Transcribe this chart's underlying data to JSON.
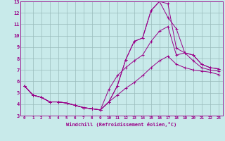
{
  "xlabel": "Windchill (Refroidissement éolien,°C)",
  "xlim": [
    -0.5,
    23.5
  ],
  "ylim": [
    3,
    13
  ],
  "xticks": [
    0,
    1,
    2,
    3,
    4,
    5,
    6,
    7,
    8,
    9,
    10,
    11,
    12,
    13,
    14,
    15,
    16,
    17,
    18,
    19,
    20,
    21,
    22,
    23
  ],
  "yticks": [
    3,
    4,
    5,
    6,
    7,
    8,
    9,
    10,
    11,
    12,
    13
  ],
  "bg_color": "#c8eaea",
  "line_color": "#990088",
  "grid_color": "#99bbbb",
  "lines": [
    {
      "x": [
        0,
        1,
        2,
        3,
        4,
        5,
        6,
        7,
        8,
        9,
        10,
        11,
        12,
        13,
        14,
        15,
        16,
        17,
        18,
        19,
        20,
        21,
        22,
        23
      ],
      "y": [
        5.6,
        4.8,
        4.6,
        4.2,
        4.2,
        4.1,
        3.9,
        3.7,
        3.6,
        3.5,
        4.2,
        5.6,
        7.9,
        9.5,
        9.8,
        12.2,
        13.0,
        12.8,
        8.9,
        8.5,
        8.3,
        7.5,
        7.2,
        7.1
      ]
    },
    {
      "x": [
        0,
        1,
        2,
        3,
        4,
        5,
        6,
        7,
        8,
        9,
        10,
        11,
        12,
        13,
        14,
        15,
        16,
        17,
        18,
        19,
        20,
        21,
        22,
        23
      ],
      "y": [
        5.6,
        4.8,
        4.6,
        4.2,
        4.2,
        4.1,
        3.9,
        3.7,
        3.6,
        3.5,
        4.2,
        5.6,
        7.9,
        9.5,
        9.8,
        12.2,
        13.0,
        11.6,
        10.6,
        8.5,
        8.3,
        7.5,
        7.2,
        7.1
      ]
    },
    {
      "x": [
        0,
        1,
        2,
        3,
        4,
        5,
        6,
        7,
        8,
        9,
        10,
        11,
        12,
        13,
        14,
        15,
        16,
        17,
        18,
        19,
        20,
        21,
        22,
        23
      ],
      "y": [
        5.6,
        4.8,
        4.6,
        4.2,
        4.2,
        4.1,
        3.9,
        3.7,
        3.6,
        3.5,
        5.3,
        6.5,
        7.2,
        7.8,
        8.3,
        9.5,
        10.4,
        10.8,
        8.3,
        8.5,
        7.8,
        7.2,
        7.0,
        6.9
      ]
    },
    {
      "x": [
        0,
        1,
        2,
        3,
        4,
        5,
        6,
        7,
        8,
        9,
        10,
        11,
        12,
        13,
        14,
        15,
        16,
        17,
        18,
        19,
        20,
        21,
        22,
        23
      ],
      "y": [
        5.6,
        4.8,
        4.6,
        4.2,
        4.2,
        4.1,
        3.9,
        3.7,
        3.6,
        3.5,
        4.2,
        4.8,
        5.4,
        5.9,
        6.5,
        7.2,
        7.8,
        8.2,
        7.5,
        7.2,
        7.0,
        6.9,
        6.8,
        6.6
      ]
    }
  ]
}
